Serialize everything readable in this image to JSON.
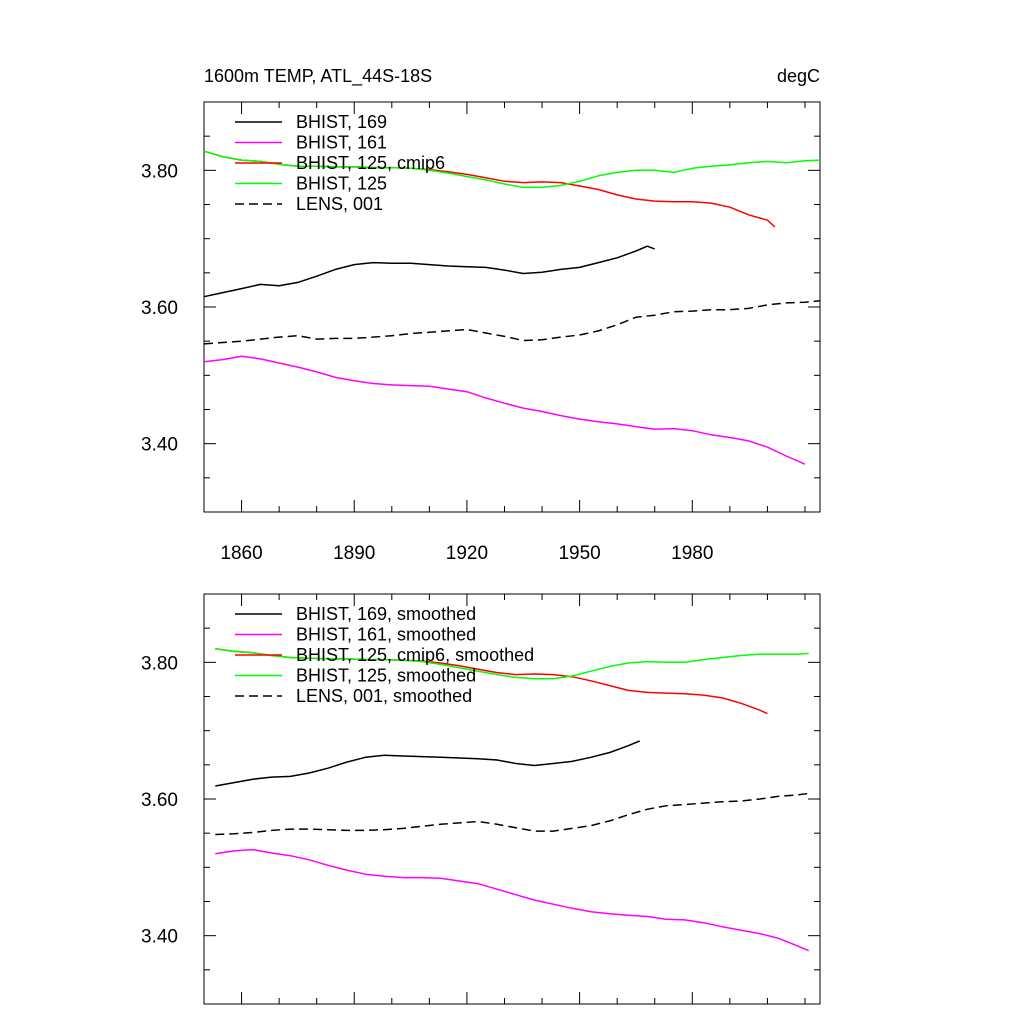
{
  "chart_data": [
    {
      "type": "line",
      "title": "1600m TEMP, ATL_44S-18S",
      "units": "degC",
      "xlim": [
        1850,
        2014
      ],
      "ylim": [
        3.3,
        3.9
      ],
      "xticks": [
        1860,
        1890,
        1920,
        1950,
        1980
      ],
      "yticks": [
        3.4,
        3.6,
        3.8
      ],
      "ytick_labels": [
        "3.40",
        "3.60",
        "3.80"
      ],
      "legend_position": "top-left",
      "series": [
        {
          "name": "BHIST, 169",
          "color": "#000000",
          "dash": "solid",
          "x": [
            1850,
            1855,
            1860,
            1865,
            1870,
            1875,
            1880,
            1885,
            1890,
            1895,
            1900,
            1905,
            1910,
            1915,
            1920,
            1925,
            1930,
            1935,
            1940,
            1945,
            1950,
            1955,
            1960,
            1965,
            1968,
            1970
          ],
          "y": [
            3.615,
            3.621,
            3.627,
            3.633,
            3.631,
            3.636,
            3.645,
            3.655,
            3.662,
            3.665,
            3.664,
            3.664,
            3.662,
            3.66,
            3.659,
            3.658,
            3.654,
            3.649,
            3.651,
            3.655,
            3.658,
            3.665,
            3.672,
            3.682,
            3.689,
            3.685
          ]
        },
        {
          "name": "BHIST, 161",
          "color": "#ff00ff",
          "dash": "solid",
          "x": [
            1850,
            1855,
            1860,
            1865,
            1870,
            1875,
            1880,
            1885,
            1890,
            1895,
            1900,
            1905,
            1910,
            1915,
            1920,
            1925,
            1930,
            1935,
            1940,
            1945,
            1950,
            1955,
            1960,
            1965,
            1970,
            1975,
            1980,
            1985,
            1990,
            1995,
            2000,
            2005,
            2010
          ],
          "y": [
            3.52,
            3.523,
            3.528,
            3.524,
            3.518,
            3.512,
            3.505,
            3.497,
            3.492,
            3.488,
            3.486,
            3.485,
            3.484,
            3.48,
            3.476,
            3.467,
            3.459,
            3.452,
            3.447,
            3.441,
            3.436,
            3.432,
            3.429,
            3.425,
            3.421,
            3.422,
            3.419,
            3.413,
            3.409,
            3.404,
            3.395,
            3.382,
            3.37
          ]
        },
        {
          "name": "BHIST, 125, cmip6",
          "color": "#ff0000",
          "dash": "solid",
          "x": [
            1850,
            1855,
            1860,
            1865,
            1870,
            1875,
            1880,
            1885,
            1890,
            1895,
            1900,
            1905,
            1910,
            1915,
            1920,
            1925,
            1930,
            1935,
            1940,
            1945,
            1950,
            1955,
            1960,
            1965,
            1970,
            1975,
            1980,
            1985,
            1990,
            1995,
            2000,
            2002
          ],
          "y": [
            3.828,
            3.82,
            3.815,
            3.813,
            3.809,
            3.806,
            3.806,
            3.805,
            3.805,
            3.804,
            3.804,
            3.803,
            3.801,
            3.798,
            3.794,
            3.789,
            3.784,
            3.782,
            3.783,
            3.782,
            3.777,
            3.772,
            3.764,
            3.758,
            3.755,
            3.754,
            3.754,
            3.752,
            3.746,
            3.735,
            3.727,
            3.717
          ]
        },
        {
          "name": "BHIST, 125",
          "color": "#00ff00",
          "dash": "solid",
          "x": [
            1850,
            1855,
            1860,
            1865,
            1870,
            1875,
            1880,
            1885,
            1890,
            1895,
            1900,
            1905,
            1910,
            1915,
            1920,
            1925,
            1930,
            1935,
            1940,
            1945,
            1950,
            1955,
            1960,
            1965,
            1970,
            1975,
            1980,
            1985,
            1990,
            1995,
            2000,
            2005,
            2010,
            2014
          ],
          "y": [
            3.828,
            3.82,
            3.815,
            3.813,
            3.809,
            3.806,
            3.806,
            3.805,
            3.805,
            3.804,
            3.804,
            3.803,
            3.8,
            3.796,
            3.791,
            3.786,
            3.78,
            3.775,
            3.775,
            3.778,
            3.784,
            3.792,
            3.797,
            3.8,
            3.8,
            3.797,
            3.803,
            3.806,
            3.808,
            3.811,
            3.813,
            3.811,
            3.814,
            3.815
          ]
        },
        {
          "name": "LENS, 001",
          "color": "#000000",
          "dash": "dashed",
          "x": [
            1850,
            1855,
            1860,
            1865,
            1870,
            1875,
            1880,
            1885,
            1890,
            1895,
            1900,
            1905,
            1910,
            1915,
            1920,
            1925,
            1930,
            1935,
            1940,
            1945,
            1950,
            1955,
            1960,
            1965,
            1970,
            1975,
            1980,
            1985,
            1990,
            1995,
            2000,
            2005,
            2010,
            2014
          ],
          "y": [
            3.546,
            3.548,
            3.55,
            3.553,
            3.556,
            3.558,
            3.553,
            3.554,
            3.554,
            3.556,
            3.558,
            3.561,
            3.563,
            3.565,
            3.567,
            3.562,
            3.557,
            3.551,
            3.552,
            3.556,
            3.559,
            3.565,
            3.574,
            3.585,
            3.588,
            3.593,
            3.594,
            3.596,
            3.596,
            3.598,
            3.603,
            3.606,
            3.607,
            3.609
          ]
        }
      ]
    },
    {
      "type": "line",
      "xlim": [
        1850,
        2014
      ],
      "ylim": [
        3.3,
        3.9
      ],
      "xticks": [
        1860,
        1890,
        1920,
        1950,
        1980
      ],
      "yticks": [
        3.4,
        3.6,
        3.8
      ],
      "ytick_labels": [
        "3.40",
        "3.60",
        "3.80"
      ],
      "legend_position": "top-left",
      "series": [
        {
          "name": "BHIST, 169, smoothed",
          "color": "#000000",
          "dash": "solid",
          "x": [
            1853,
            1858,
            1863,
            1868,
            1873,
            1878,
            1883,
            1888,
            1893,
            1898,
            1903,
            1908,
            1913,
            1918,
            1923,
            1928,
            1933,
            1938,
            1943,
            1948,
            1953,
            1958,
            1963,
            1966
          ],
          "y": [
            3.619,
            3.624,
            3.629,
            3.632,
            3.633,
            3.638,
            3.645,
            3.654,
            3.661,
            3.664,
            3.663,
            3.662,
            3.661,
            3.66,
            3.659,
            3.657,
            3.652,
            3.649,
            3.652,
            3.655,
            3.661,
            3.668,
            3.678,
            3.685
          ]
        },
        {
          "name": "BHIST, 161, smoothed",
          "color": "#ff00ff",
          "dash": "solid",
          "x": [
            1853,
            1858,
            1863,
            1868,
            1873,
            1878,
            1883,
            1888,
            1893,
            1898,
            1903,
            1908,
            1913,
            1918,
            1923,
            1928,
            1933,
            1938,
            1943,
            1948,
            1953,
            1958,
            1963,
            1968,
            1973,
            1978,
            1983,
            1988,
            1993,
            1998,
            2003,
            2008,
            2011
          ],
          "y": [
            3.52,
            3.524,
            3.526,
            3.521,
            3.517,
            3.511,
            3.503,
            3.496,
            3.49,
            3.487,
            3.485,
            3.485,
            3.484,
            3.48,
            3.476,
            3.468,
            3.46,
            3.452,
            3.446,
            3.44,
            3.435,
            3.432,
            3.43,
            3.428,
            3.424,
            3.423,
            3.419,
            3.413,
            3.408,
            3.403,
            3.396,
            3.385,
            3.378
          ]
        },
        {
          "name": "BHIST, 125, cmip6, smoothed",
          "color": "#ff0000",
          "dash": "solid",
          "x": [
            1853,
            1858,
            1863,
            1868,
            1873,
            1878,
            1883,
            1888,
            1893,
            1898,
            1903,
            1908,
            1913,
            1918,
            1923,
            1928,
            1933,
            1938,
            1943,
            1948,
            1953,
            1958,
            1963,
            1968,
            1973,
            1978,
            1983,
            1988,
            1993,
            1998,
            2000
          ],
          "y": [
            3.82,
            3.816,
            3.814,
            3.81,
            3.807,
            3.806,
            3.805,
            3.805,
            3.804,
            3.804,
            3.803,
            3.802,
            3.799,
            3.795,
            3.79,
            3.785,
            3.782,
            3.783,
            3.782,
            3.779,
            3.773,
            3.766,
            3.759,
            3.756,
            3.755,
            3.754,
            3.752,
            3.748,
            3.74,
            3.73,
            3.725
          ]
        },
        {
          "name": "BHIST, 125, smoothed",
          "color": "#00ff00",
          "dash": "solid",
          "x": [
            1853,
            1858,
            1863,
            1868,
            1873,
            1878,
            1883,
            1888,
            1893,
            1898,
            1903,
            1908,
            1913,
            1918,
            1923,
            1928,
            1933,
            1938,
            1943,
            1948,
            1953,
            1958,
            1963,
            1968,
            1973,
            1978,
            1983,
            1988,
            1993,
            1998,
            2003,
            2008,
            2011
          ],
          "y": [
            3.82,
            3.816,
            3.814,
            3.81,
            3.807,
            3.806,
            3.805,
            3.805,
            3.804,
            3.804,
            3.803,
            3.801,
            3.797,
            3.792,
            3.787,
            3.782,
            3.778,
            3.776,
            3.776,
            3.78,
            3.787,
            3.794,
            3.799,
            3.801,
            3.8,
            3.8,
            3.804,
            3.807,
            3.81,
            3.812,
            3.812,
            3.812,
            3.813
          ]
        },
        {
          "name": "LENS, 001, smoothed",
          "color": "#000000",
          "dash": "dashed",
          "x": [
            1853,
            1858,
            1863,
            1868,
            1873,
            1878,
            1883,
            1888,
            1893,
            1898,
            1903,
            1908,
            1913,
            1918,
            1923,
            1928,
            1933,
            1938,
            1943,
            1948,
            1953,
            1958,
            1963,
            1968,
            1973,
            1978,
            1983,
            1988,
            1993,
            1998,
            2003,
            2008,
            2011
          ],
          "y": [
            3.548,
            3.549,
            3.551,
            3.554,
            3.556,
            3.556,
            3.555,
            3.554,
            3.554,
            3.555,
            3.557,
            3.56,
            3.563,
            3.565,
            3.567,
            3.563,
            3.558,
            3.553,
            3.553,
            3.557,
            3.561,
            3.568,
            3.577,
            3.585,
            3.59,
            3.592,
            3.594,
            3.596,
            3.597,
            3.6,
            3.604,
            3.606,
            3.608
          ]
        }
      ]
    }
  ]
}
